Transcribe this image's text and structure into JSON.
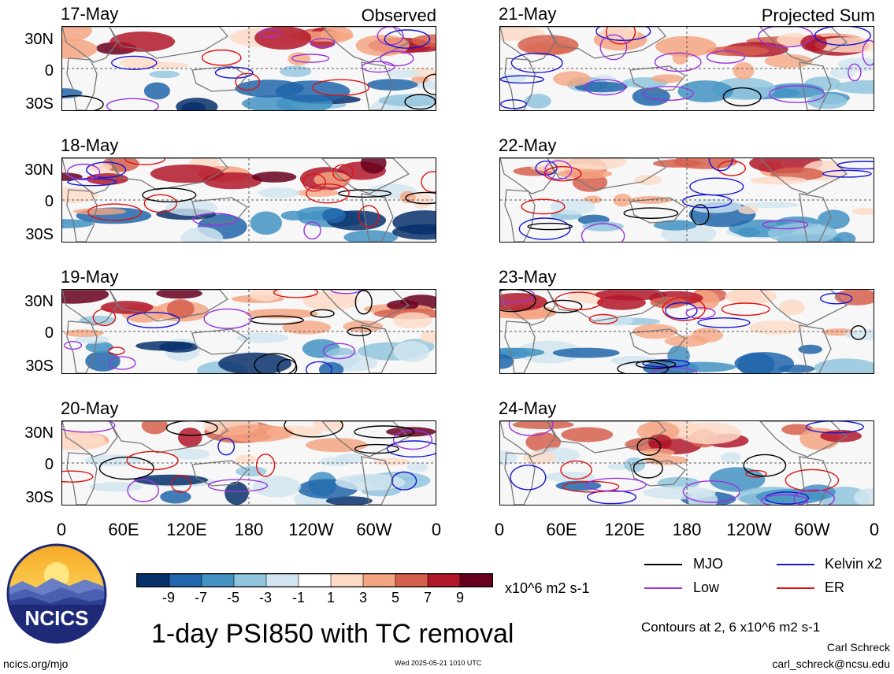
{
  "panels_left_label": "Observed",
  "panels_right_label": "Projected Sum",
  "panels": [
    {
      "date": "17-May",
      "column": "left",
      "row": 0,
      "observed": true
    },
    {
      "date": "18-May",
      "column": "left",
      "row": 1,
      "observed": true
    },
    {
      "date": "19-May",
      "column": "left",
      "row": 2,
      "observed": true
    },
    {
      "date": "20-May",
      "column": "left",
      "row": 3,
      "observed": true
    },
    {
      "date": "21-May",
      "column": "right",
      "row": 0,
      "observed": false
    },
    {
      "date": "22-May",
      "column": "right",
      "row": 1,
      "observed": false
    },
    {
      "date": "23-May",
      "column": "right",
      "row": 2,
      "observed": false
    },
    {
      "date": "24-May",
      "column": "right",
      "row": 3,
      "observed": false
    }
  ],
  "lat_labels": [
    "30N",
    "0",
    "30S"
  ],
  "lon_labels": [
    "0",
    "60E",
    "120E",
    "180",
    "120W",
    "60W",
    "0"
  ],
  "colorbar": {
    "colors": [
      "#08306b",
      "#2166ac",
      "#4393c3",
      "#92c5de",
      "#d1e5f0",
      "#ffffff",
      "#fddbc7",
      "#f4a582",
      "#d6604d",
      "#b2182b",
      "#67001f"
    ],
    "ticks": [
      "-9",
      "-7",
      "-5",
      "-3",
      "-1",
      "1",
      "3",
      "5",
      "7",
      "9"
    ],
    "units": "x10^6 m2 s-1"
  },
  "legend": [
    {
      "label": "MJO",
      "color": "#000000"
    },
    {
      "label": "Kelvin x2",
      "color": "#1515d6"
    },
    {
      "label": "Low",
      "color": "#9933dd"
    },
    {
      "label": "ER",
      "color": "#dd1111"
    }
  ],
  "contours_note": "Contours at 2, 6 x10^6 m2 s-1",
  "title": "1-day PSI850 with TC removal",
  "logo_text": "NCICS",
  "footer_left": "ncics.org/mjo",
  "footer_center": "Wed 2025-05-21 1010 UTC",
  "author": "Carl Schreck",
  "email": "carl_schreck@ncsu.edu"
}
